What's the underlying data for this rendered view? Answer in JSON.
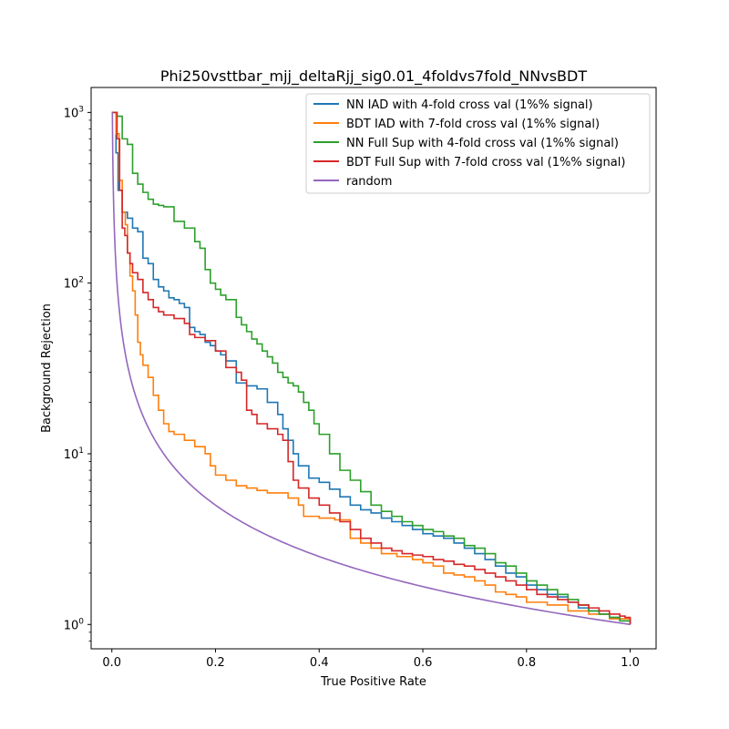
{
  "chart_data": {
    "type": "line",
    "title": "Phi250vsttbar_mjj_deltaRjj_sig0.01_4foldvs7fold_NNvsBDT",
    "xlabel": "True Positive Rate",
    "ylabel": "Background Rejection",
    "xlim": [
      -0.04,
      1.05
    ],
    "ylim": [
      0.72,
      1400
    ],
    "yscale": "log",
    "grid": false,
    "legend_position": "top-right",
    "xticks": [
      {
        "value": 0.0,
        "label": "0.0"
      },
      {
        "value": 0.2,
        "label": "0.2"
      },
      {
        "value": 0.4,
        "label": "0.4"
      },
      {
        "value": 0.6,
        "label": "0.6"
      },
      {
        "value": 0.8,
        "label": "0.8"
      },
      {
        "value": 1.0,
        "label": "1.0"
      }
    ],
    "yticks": [
      {
        "value": 1,
        "base": "10",
        "exp": "0"
      },
      {
        "value": 10,
        "base": "10",
        "exp": "1"
      },
      {
        "value": 100,
        "base": "10",
        "exp": "2"
      },
      {
        "value": 1000,
        "base": "10",
        "exp": "3"
      }
    ],
    "series": [
      {
        "name": "NN IAD with 4-fold cross val (1%% signal)",
        "color": "#1f77b4",
        "x": [
          0.0,
          0.008,
          0.012,
          0.02,
          0.03,
          0.04,
          0.05,
          0.06,
          0.07,
          0.08,
          0.09,
          0.1,
          0.11,
          0.12,
          0.13,
          0.14,
          0.15,
          0.16,
          0.17,
          0.18,
          0.19,
          0.2,
          0.21,
          0.22,
          0.24,
          0.26,
          0.28,
          0.3,
          0.32,
          0.33,
          0.34,
          0.35,
          0.36,
          0.38,
          0.4,
          0.42,
          0.44,
          0.46,
          0.48,
          0.5,
          0.52,
          0.54,
          0.56,
          0.58,
          0.6,
          0.62,
          0.64,
          0.66,
          0.68,
          0.7,
          0.72,
          0.74,
          0.76,
          0.78,
          0.8,
          0.82,
          0.84,
          0.86,
          0.88,
          0.9,
          0.92,
          0.94,
          0.96,
          0.98,
          1.0
        ],
        "y": [
          1000,
          580,
          350,
          260,
          240,
          210,
          200,
          140,
          130,
          105,
          95,
          90,
          82,
          80,
          76,
          72,
          55,
          52,
          50,
          45,
          43,
          40,
          38,
          35,
          26,
          25,
          24,
          20,
          17,
          14,
          12,
          10,
          8.5,
          7.2,
          6.8,
          6.2,
          5.6,
          5.0,
          4.7,
          4.5,
          4.2,
          4.0,
          3.8,
          3.6,
          3.4,
          3.3,
          3.2,
          3.0,
          2.8,
          2.6,
          2.4,
          2.2,
          2.0,
          1.9,
          1.7,
          1.6,
          1.5,
          1.45,
          1.35,
          1.25,
          1.2,
          1.15,
          1.1,
          1.05,
          1.0
        ]
      },
      {
        "name": "BDT IAD with 7-fold cross val (1%% signal)",
        "color": "#ff7f0e",
        "x": [
          0.0,
          0.008,
          0.014,
          0.02,
          0.026,
          0.03,
          0.035,
          0.04,
          0.045,
          0.05,
          0.055,
          0.06,
          0.07,
          0.08,
          0.09,
          0.1,
          0.11,
          0.12,
          0.14,
          0.16,
          0.18,
          0.19,
          0.2,
          0.22,
          0.24,
          0.26,
          0.28,
          0.3,
          0.34,
          0.36,
          0.37,
          0.4,
          0.43,
          0.46,
          0.48,
          0.5,
          0.52,
          0.55,
          0.58,
          0.6,
          0.62,
          0.64,
          0.66,
          0.68,
          0.7,
          0.72,
          0.74,
          0.76,
          0.78,
          0.8,
          0.84,
          0.88,
          0.92,
          0.96,
          1.0
        ],
        "y": [
          1000,
          750,
          400,
          260,
          220,
          150,
          110,
          90,
          65,
          45,
          38,
          33,
          28,
          22,
          18,
          15,
          13.5,
          13,
          12,
          11,
          10,
          8.5,
          7.5,
          7.0,
          6.5,
          6.3,
          6.1,
          5.9,
          5.5,
          5.0,
          4.3,
          4.2,
          4.1,
          3.2,
          3.0,
          2.8,
          2.6,
          2.5,
          2.4,
          2.3,
          2.2,
          2.0,
          1.95,
          1.9,
          1.8,
          1.7,
          1.55,
          1.5,
          1.45,
          1.35,
          1.3,
          1.2,
          1.15,
          1.08,
          1.0
        ]
      },
      {
        "name": "NN Full Sup with 4-fold cross val (1%% signal)",
        "color": "#2ca02c",
        "x": [
          0.0,
          0.01,
          0.02,
          0.03,
          0.04,
          0.05,
          0.06,
          0.07,
          0.08,
          0.09,
          0.1,
          0.12,
          0.14,
          0.16,
          0.17,
          0.18,
          0.19,
          0.2,
          0.21,
          0.22,
          0.24,
          0.25,
          0.26,
          0.27,
          0.28,
          0.29,
          0.3,
          0.31,
          0.32,
          0.33,
          0.34,
          0.35,
          0.36,
          0.37,
          0.38,
          0.39,
          0.4,
          0.42,
          0.44,
          0.46,
          0.48,
          0.5,
          0.52,
          0.54,
          0.56,
          0.58,
          0.6,
          0.62,
          0.64,
          0.66,
          0.68,
          0.7,
          0.72,
          0.74,
          0.76,
          0.78,
          0.8,
          0.82,
          0.84,
          0.86,
          0.88,
          0.9,
          0.92,
          0.94,
          0.96,
          0.98,
          1.0
        ],
        "y": [
          1000,
          950,
          700,
          650,
          440,
          380,
          340,
          310,
          290,
          285,
          280,
          230,
          210,
          175,
          160,
          120,
          100,
          92,
          85,
          80,
          63,
          57,
          52,
          47,
          44,
          40,
          37,
          34,
          30,
          28,
          26,
          25,
          23,
          20,
          18,
          15,
          13,
          10,
          8,
          7,
          6,
          5,
          4.6,
          4.3,
          4.0,
          3.8,
          3.6,
          3.5,
          3.3,
          3.2,
          2.9,
          2.8,
          2.6,
          2.3,
          2.2,
          2.0,
          1.8,
          1.7,
          1.6,
          1.5,
          1.4,
          1.3,
          1.2,
          1.15,
          1.1,
          1.05,
          1.0
        ]
      },
      {
        "name": "BDT Full Sup with 7-fold cross val (1%% signal)",
        "color": "#d62728",
        "x": [
          0.0,
          0.01,
          0.015,
          0.02,
          0.025,
          0.03,
          0.035,
          0.04,
          0.05,
          0.06,
          0.07,
          0.08,
          0.09,
          0.1,
          0.12,
          0.14,
          0.15,
          0.16,
          0.18,
          0.2,
          0.22,
          0.24,
          0.25,
          0.26,
          0.27,
          0.28,
          0.3,
          0.32,
          0.33,
          0.34,
          0.35,
          0.36,
          0.38,
          0.4,
          0.42,
          0.44,
          0.46,
          0.48,
          0.5,
          0.52,
          0.54,
          0.56,
          0.58,
          0.6,
          0.62,
          0.64,
          0.66,
          0.68,
          0.7,
          0.72,
          0.74,
          0.76,
          0.78,
          0.8,
          0.82,
          0.84,
          0.86,
          0.88,
          0.9,
          0.92,
          0.94,
          0.96,
          0.98,
          0.99,
          1.0
        ],
        "y": [
          1000,
          700,
          350,
          210,
          190,
          150,
          130,
          115,
          105,
          88,
          80,
          72,
          68,
          65,
          62,
          58,
          50,
          48,
          46,
          40,
          32,
          30,
          27,
          18,
          17,
          15,
          14,
          13,
          12,
          9,
          7,
          6.3,
          5.5,
          5.0,
          4.5,
          4.0,
          3.6,
          3.2,
          3.0,
          2.8,
          2.7,
          2.6,
          2.55,
          2.5,
          2.4,
          2.35,
          2.25,
          2.2,
          2.1,
          2.0,
          1.9,
          1.8,
          1.7,
          1.6,
          1.5,
          1.45,
          1.4,
          1.35,
          1.3,
          1.25,
          1.2,
          1.15,
          1.12,
          1.1,
          1.0
        ]
      },
      {
        "name": "random",
        "color": "#9467bd",
        "function": "1/x",
        "x_from": 0.001,
        "x_to": 1.0
      }
    ]
  }
}
